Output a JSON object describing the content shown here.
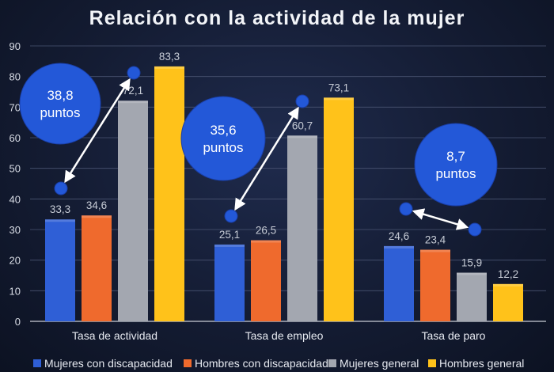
{
  "chart_data": {
    "type": "bar",
    "title": "Relación con la actividad de la mujer",
    "categories": [
      "Tasa de actividad",
      "Tasa de empleo",
      "Tasa de paro"
    ],
    "series": [
      {
        "name": "Mujeres con discapacidad",
        "values": [
          33.3,
          25.1,
          24.6
        ],
        "labels": [
          "33,3",
          "25,1",
          "24,6"
        ],
        "color": "#2f5fd6"
      },
      {
        "name": "Hombres con discapacidad",
        "values": [
          34.6,
          26.5,
          23.4
        ],
        "labels": [
          "34,6",
          "26,5",
          "23,4"
        ],
        "color": "#ef6a2d"
      },
      {
        "name": "Mujeres general",
        "values": [
          72.1,
          60.7,
          15.9
        ],
        "labels": [
          "72,1",
          "60,7",
          "15,9"
        ],
        "color": "#a3a7b0"
      },
      {
        "name": "Hombres general",
        "values": [
          83.3,
          73.1,
          12.2
        ],
        "labels": [
          "83,3",
          "73,1",
          "12,2"
        ],
        "color": "#ffc21a"
      }
    ],
    "ylim": [
      0,
      90
    ],
    "yticks": [
      0,
      10,
      20,
      30,
      40,
      50,
      60,
      70,
      80,
      90
    ],
    "grid": true,
    "legend_position": "bottom",
    "annotations": [
      {
        "category": "Tasa de actividad",
        "line1": "38,8",
        "line2": "puntos",
        "from_series": "Mujeres con discapacidad",
        "to_series": "Mujeres general"
      },
      {
        "category": "Tasa de empleo",
        "line1": "35,6",
        "line2": "puntos",
        "from_series": "Mujeres con discapacidad",
        "to_series": "Mujeres general"
      },
      {
        "category": "Tasa de paro",
        "line1": "8,7",
        "line2": "puntos",
        "from_series": "Mujeres con discapacidad",
        "to_series": "Mujeres general"
      }
    ],
    "annotation_color": "#2358d8"
  }
}
